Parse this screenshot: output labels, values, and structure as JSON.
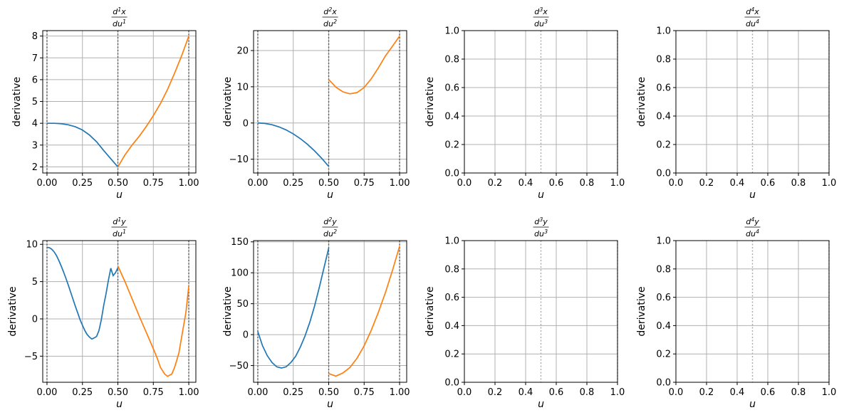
{
  "figure": {
    "background": "#ffffff"
  },
  "colors": {
    "segment1": "#1f77b4",
    "segment2": "#ff7f0e",
    "grid": "#b0b0b0",
    "knot": "#555555",
    "knot_faint": "#aaaaaa"
  },
  "chart_data": [
    {
      "id": "dx1",
      "type": "line",
      "title": {
        "num": "d",
        "num_sup": "1",
        "num_var": "x",
        "den": "du",
        "den_sup": "1"
      },
      "xlabel": "u",
      "ylabel": "derivative",
      "xlim": [
        -0.03,
        1.05
      ],
      "ylim": [
        1.72,
        8.25
      ],
      "xticks": [
        0,
        0.25,
        0.5,
        0.75,
        1.0
      ],
      "xticklabels": [
        "0.00",
        "0.25",
        "0.50",
        "0.75",
        "1.00"
      ],
      "yticks": [
        2,
        3,
        4,
        5,
        6,
        7,
        8
      ],
      "yticklabels": [
        "2",
        "3",
        "4",
        "5",
        "6",
        "7",
        "8"
      ],
      "grid": true,
      "knot_lines": [
        0,
        0.5,
        1.0
      ],
      "knot_style": "dark",
      "series": [
        {
          "color": "#1f77b4",
          "x": [
            0,
            0.05,
            0.1,
            0.15,
            0.2,
            0.25,
            0.3,
            0.35,
            0.4,
            0.45,
            0.5
          ],
          "y": [
            4.0,
            4.0,
            3.98,
            3.93,
            3.84,
            3.69,
            3.46,
            3.15,
            2.75,
            2.37,
            2.0
          ]
        },
        {
          "color": "#ff7f0e",
          "x": [
            0.5,
            0.55,
            0.6,
            0.65,
            0.7,
            0.75,
            0.8,
            0.85,
            0.9,
            0.95,
            1.0
          ],
          "y": [
            2.0,
            2.55,
            3.0,
            3.4,
            3.85,
            4.35,
            4.9,
            5.55,
            6.3,
            7.1,
            8.0
          ]
        }
      ]
    },
    {
      "id": "dx2",
      "type": "line",
      "title": {
        "num": "d",
        "num_sup": "2",
        "num_var": "x",
        "den": "du",
        "den_sup": "2"
      },
      "xlabel": "u",
      "ylabel": "derivative",
      "xlim": [
        -0.03,
        1.05
      ],
      "ylim": [
        -13.8,
        25.5
      ],
      "xticks": [
        0,
        0.25,
        0.5,
        0.75,
        1.0
      ],
      "xticklabels": [
        "0.00",
        "0.25",
        "0.50",
        "0.75",
        "1.00"
      ],
      "yticks": [
        -10,
        0,
        10,
        20
      ],
      "yticklabels": [
        "−10",
        "0",
        "10",
        "20"
      ],
      "grid": true,
      "knot_lines": [
        0,
        0.5,
        1.0
      ],
      "knot_style": "dark",
      "series": [
        {
          "color": "#1f77b4",
          "x": [
            0,
            0.05,
            0.1,
            0.15,
            0.2,
            0.25,
            0.3,
            0.35,
            0.4,
            0.45,
            0.5
          ],
          "y": [
            0,
            -0.12,
            -0.48,
            -1.08,
            -1.92,
            -3.0,
            -4.32,
            -5.88,
            -7.68,
            -9.72,
            -12.0
          ]
        },
        {
          "color": "#ff7f0e",
          "x": [
            0.5,
            0.55,
            0.6,
            0.65,
            0.7,
            0.75,
            0.8,
            0.85,
            0.9,
            0.95,
            1.0
          ],
          "y": [
            12.0,
            9.9,
            8.6,
            8.05,
            8.4,
            9.8,
            12.2,
            15.2,
            18.5,
            21.2,
            24.0
          ]
        }
      ]
    },
    {
      "id": "dx3",
      "type": "line",
      "title": {
        "num": "d",
        "num_sup": "3",
        "num_var": "x",
        "den": "du",
        "den_sup": "3"
      },
      "xlabel": "u",
      "ylabel": "derivative",
      "xlim": [
        0,
        1.0
      ],
      "ylim": [
        0,
        1.0
      ],
      "xticks": [
        0,
        0.2,
        0.4,
        0.6,
        0.8,
        1.0
      ],
      "xticklabels": [
        "0.0",
        "0.2",
        "0.4",
        "0.6",
        "0.8",
        "1.0"
      ],
      "yticks": [
        0,
        0.2,
        0.4,
        0.6,
        0.8,
        1.0
      ],
      "yticklabels": [
        "0.0",
        "0.2",
        "0.4",
        "0.6",
        "0.8",
        "1.0"
      ],
      "grid": true,
      "knot_lines": [
        0.5,
        1.0
      ],
      "knot_style": "faint",
      "series": []
    },
    {
      "id": "dx4",
      "type": "line",
      "title": {
        "num": "d",
        "num_sup": "4",
        "num_var": "x",
        "den": "du",
        "den_sup": "4"
      },
      "xlabel": "u",
      "ylabel": "derivative",
      "xlim": [
        0,
        1.0
      ],
      "ylim": [
        0,
        1.0
      ],
      "xticks": [
        0,
        0.2,
        0.4,
        0.6,
        0.8,
        1.0
      ],
      "xticklabels": [
        "0.0",
        "0.2",
        "0.4",
        "0.6",
        "0.8",
        "1.0"
      ],
      "yticks": [
        0,
        0.2,
        0.4,
        0.6,
        0.8,
        1.0
      ],
      "yticklabels": [
        "0.0",
        "0.2",
        "0.4",
        "0.6",
        "0.8",
        "1.0"
      ],
      "grid": true,
      "knot_lines": [
        0.5,
        1.0
      ],
      "knot_style": "faint",
      "series": []
    },
    {
      "id": "dy1",
      "type": "line",
      "title": {
        "num": "d",
        "num_sup": "1",
        "num_var": "y",
        "den": "du",
        "den_sup": "1"
      },
      "xlabel": "u",
      "ylabel": "derivative",
      "xlim": [
        -0.03,
        1.05
      ],
      "ylim": [
        -8.5,
        10.5
      ],
      "xticks": [
        0,
        0.25,
        0.5,
        0.75,
        1.0
      ],
      "xticklabels": [
        "0.00",
        "0.25",
        "0.50",
        "0.75",
        "1.00"
      ],
      "yticks": [
        -5,
        0,
        5,
        10
      ],
      "yticklabels": [
        "−5",
        "0",
        "5",
        "10"
      ],
      "grid": true,
      "knot_lines": [
        0,
        0.5,
        1.0
      ],
      "knot_style": "dark",
      "series": [
        {
          "color": "#1f77b4",
          "x": [
            0,
            0.0167,
            0.0333,
            0.05,
            0.0667,
            0.0833,
            0.1,
            0.1167,
            0.1333,
            0.15,
            0.1667,
            0.1833,
            0.2,
            0.2167,
            0.2333,
            0.25,
            0.2667,
            0.2833,
            0.3,
            0.3167,
            0.3333,
            0.35,
            0.3667,
            0.3833,
            0.4,
            0.4167,
            0.4333,
            0.45,
            0.4667,
            0.4833,
            0.5
          ],
          "y": [
            9.6,
            9.55,
            9.35,
            9.0,
            8.5,
            7.85,
            7.1,
            6.3,
            5.45,
            4.55,
            3.6,
            2.65,
            1.7,
            0.8,
            -0.1,
            -0.85,
            -1.55,
            -2.1,
            -2.45,
            -2.7,
            -2.55,
            -2.35,
            -1.55,
            -0.1,
            1.8,
            3.4,
            5.2,
            6.8,
            5.8,
            6.2,
            6.85
          ]
        },
        {
          "color": "#ff7f0e",
          "x": [
            0.5,
            0.55,
            0.6,
            0.65,
            0.7,
            0.75,
            0.78,
            0.8,
            0.83,
            0.85,
            0.88,
            0.9,
            0.93,
            0.95,
            0.98,
            1.0
          ],
          "y": [
            7.1,
            5.0,
            2.7,
            0.4,
            -1.8,
            -4.0,
            -5.4,
            -6.5,
            -7.4,
            -7.7,
            -7.4,
            -6.5,
            -4.6,
            -2.4,
            0.9,
            4.4
          ]
        }
      ]
    },
    {
      "id": "dy2",
      "type": "line",
      "title": {
        "num": "d",
        "num_sup": "2",
        "num_var": "y",
        "den": "du",
        "den_sup": "2"
      },
      "xlabel": "u",
      "ylabel": "derivative",
      "xlim": [
        -0.03,
        1.05
      ],
      "ylim": [
        -77,
        152
      ],
      "xticks": [
        0,
        0.25,
        0.5,
        0.75,
        1.0
      ],
      "xticklabels": [
        "0.00",
        "0.25",
        "0.50",
        "0.75",
        "1.00"
      ],
      "yticks": [
        -50,
        0,
        50,
        100,
        150
      ],
      "yticklabels": [
        "−50",
        "0",
        "50",
        "100",
        "150"
      ],
      "grid": true,
      "knot_lines": [
        0,
        0.5,
        1.0
      ],
      "knot_style": "dark",
      "series": [
        {
          "color": "#1f77b4",
          "x": [
            0,
            0.0333,
            0.0667,
            0.1,
            0.1333,
            0.1667,
            0.2,
            0.2333,
            0.2667,
            0.3,
            0.3333,
            0.3667,
            0.4,
            0.4333,
            0.4667,
            0.5
          ],
          "y": [
            5,
            -18,
            -34,
            -45,
            -52,
            -54,
            -52,
            -45,
            -35,
            -20,
            -2,
            20,
            46,
            76,
            108,
            140
          ]
        },
        {
          "color": "#ff7f0e",
          "x": [
            0.5,
            0.55,
            0.6,
            0.65,
            0.7,
            0.75,
            0.8,
            0.85,
            0.9,
            0.95,
            1.0
          ],
          "y": [
            -63,
            -67,
            -62,
            -53,
            -38,
            -18,
            7,
            36,
            68,
            104,
            143
          ]
        }
      ]
    },
    {
      "id": "dy3",
      "type": "line",
      "title": {
        "num": "d",
        "num_sup": "3",
        "num_var": "y",
        "den": "du",
        "den_sup": "3"
      },
      "xlabel": "u",
      "ylabel": "derivative",
      "xlim": [
        0,
        1.0
      ],
      "ylim": [
        0,
        1.0
      ],
      "xticks": [
        0,
        0.2,
        0.4,
        0.6,
        0.8,
        1.0
      ],
      "xticklabels": [
        "0.0",
        "0.2",
        "0.4",
        "0.6",
        "0.8",
        "1.0"
      ],
      "yticks": [
        0,
        0.2,
        0.4,
        0.6,
        0.8,
        1.0
      ],
      "yticklabels": [
        "0.0",
        "0.2",
        "0.4",
        "0.6",
        "0.8",
        "1.0"
      ],
      "grid": true,
      "knot_lines": [
        0.5,
        1.0
      ],
      "knot_style": "faint",
      "series": []
    },
    {
      "id": "dy4",
      "type": "line",
      "title": {
        "num": "d",
        "num_sup": "4",
        "num_var": "y",
        "den": "du",
        "den_sup": "4"
      },
      "xlabel": "u",
      "ylabel": "derivative",
      "xlim": [
        0,
        1.0
      ],
      "ylim": [
        0,
        1.0
      ],
      "xticks": [
        0,
        0.2,
        0.4,
        0.6,
        0.8,
        1.0
      ],
      "xticklabels": [
        "0.0",
        "0.2",
        "0.4",
        "0.6",
        "0.8",
        "1.0"
      ],
      "yticks": [
        0,
        0.2,
        0.4,
        0.6,
        0.8,
        1.0
      ],
      "yticklabels": [
        "0.0",
        "0.2",
        "0.4",
        "0.6",
        "0.8",
        "1.0"
      ],
      "grid": true,
      "knot_lines": [
        0.5,
        1.0
      ],
      "knot_style": "faint",
      "series": []
    }
  ]
}
